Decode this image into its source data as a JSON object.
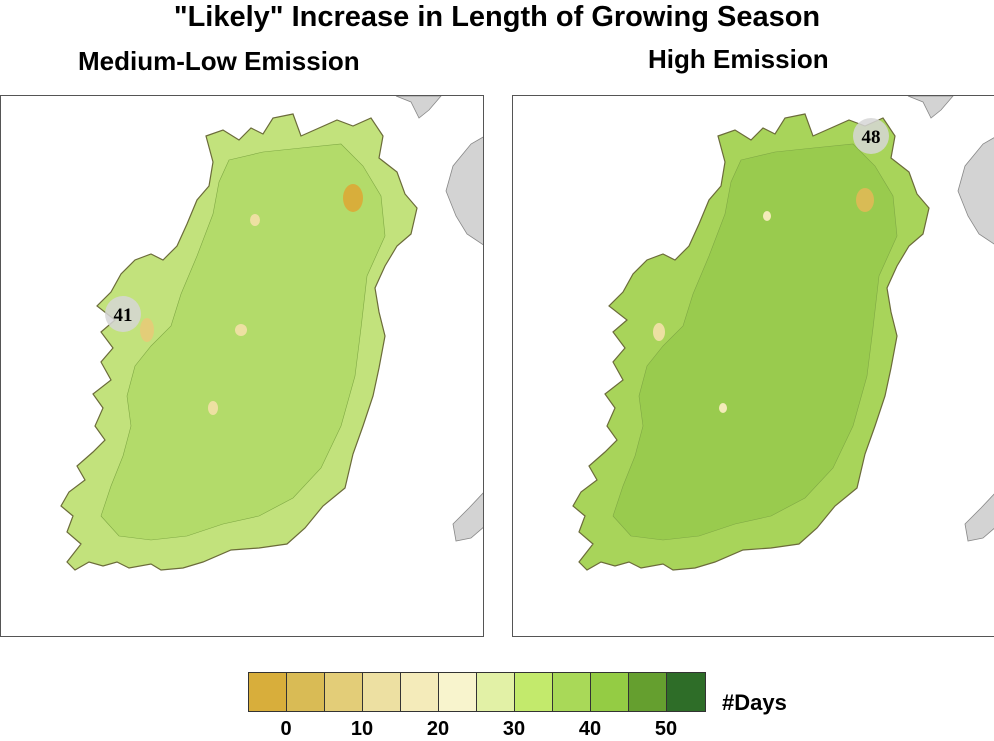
{
  "title": "\"Likely\" Increase in Length of Growing Season",
  "panels": [
    {
      "title": "Medium-Low Emission",
      "marker_value": "41",
      "fill": "#c2e27c",
      "blob": "#a7d55b"
    },
    {
      "title": "High Emission",
      "marker_value": "48",
      "fill": "#a8d45a",
      "blob": "#8cc246"
    }
  ],
  "legend": {
    "unit": "#Days",
    "colors": [
      "#d8ae3b",
      "#d9bb55",
      "#e3cd78",
      "#ede0a2",
      "#f4ebba",
      "#f8f4cd",
      "#e2f1a6",
      "#c3ea6c",
      "#a9d958",
      "#94cc44",
      "#659f2f",
      "#2e6d28"
    ],
    "ticks": [
      "0",
      "10",
      "20",
      "30",
      "40",
      "50"
    ]
  },
  "colors": {
    "land_neighbor": "#d3d3d3",
    "coast": "#6b6b3a"
  }
}
